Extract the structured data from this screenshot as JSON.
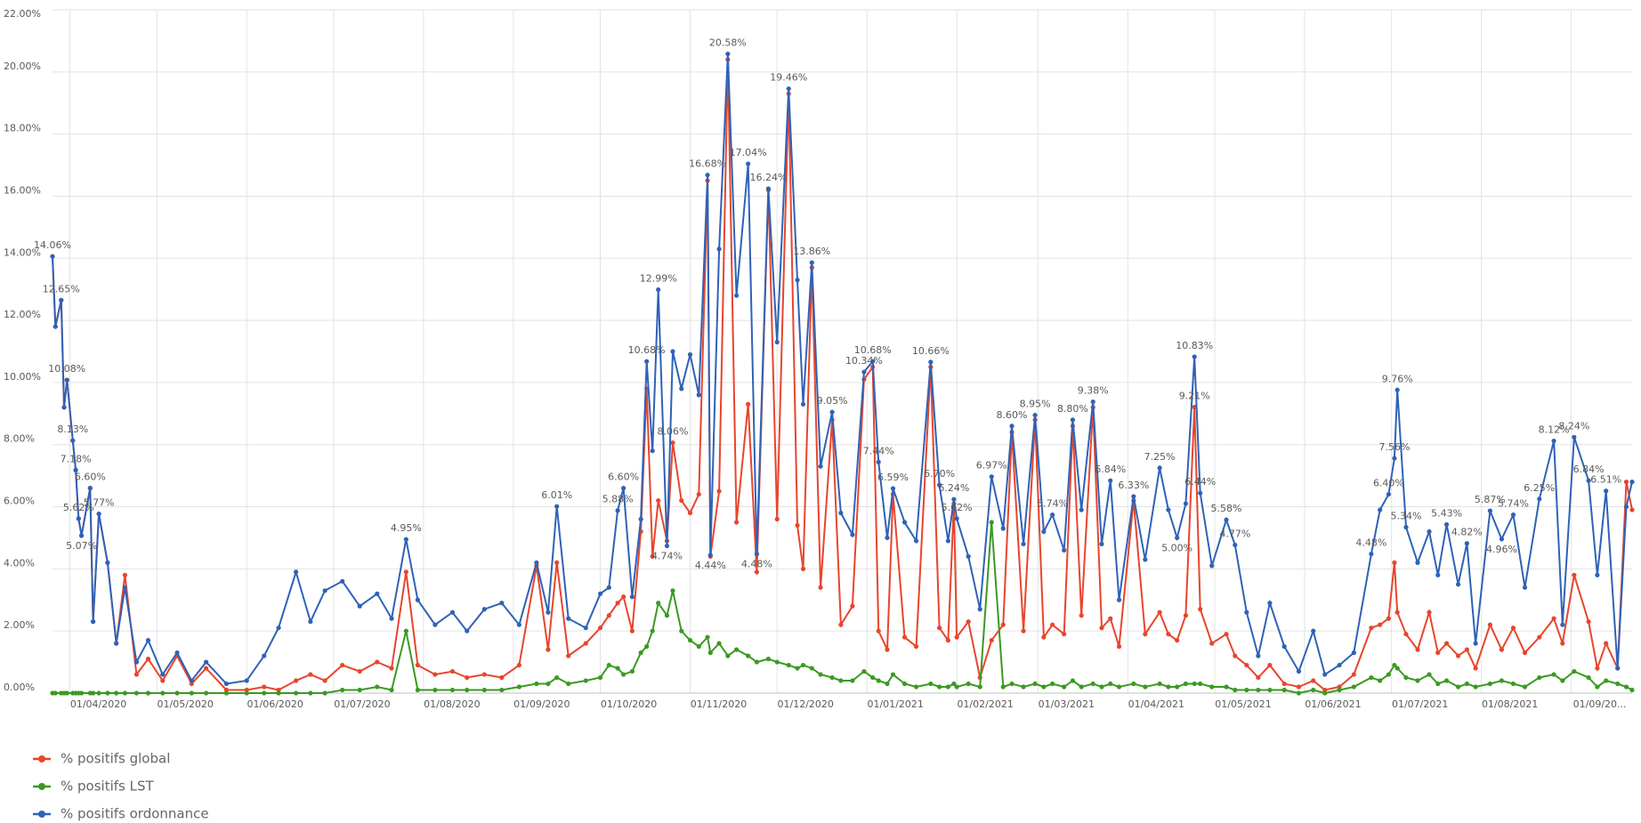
{
  "chart_data": {
    "type": "line",
    "x": [
      "26/03/2020",
      "27/03/2020",
      "29/03/2020",
      "30/03/2020",
      "31/03/2020",
      "02/04/2020",
      "03/04/2020",
      "04/04/2020",
      "05/04/2020",
      "08/04/2020",
      "09/04/2020",
      "11/04/2020",
      "14/04/2020",
      "17/04/2020",
      "20/04/2020",
      "24/04/2020",
      "28/04/2020",
      "03/05/2020",
      "08/05/2020",
      "13/05/2020",
      "18/05/2020",
      "25/05/2020",
      "01/06/2020",
      "07/06/2020",
      "12/06/2020",
      "18/06/2020",
      "23/06/2020",
      "28/06/2020",
      "04/07/2020",
      "10/07/2020",
      "16/07/2020",
      "21/07/2020",
      "26/07/2020",
      "30/07/2020",
      "05/08/2020",
      "11/08/2020",
      "16/08/2020",
      "22/08/2020",
      "28/08/2020",
      "03/09/2020",
      "09/09/2020",
      "13/09/2020",
      "16/09/2020",
      "20/09/2020",
      "26/09/2020",
      "01/10/2020",
      "04/10/2020",
      "07/10/2020",
      "09/10/2020",
      "12/10/2020",
      "15/10/2020",
      "17/10/2020",
      "19/10/2020",
      "21/10/2020",
      "24/10/2020",
      "26/10/2020",
      "29/10/2020",
      "01/11/2020",
      "04/11/2020",
      "07/11/2020",
      "08/11/2020",
      "11/11/2020",
      "14/11/2020",
      "17/11/2020",
      "21/11/2020",
      "24/11/2020",
      "28/11/2020",
      "01/12/2020",
      "05/12/2020",
      "08/12/2020",
      "10/12/2020",
      "13/12/2020",
      "16/12/2020",
      "20/12/2020",
      "23/12/2020",
      "27/12/2020",
      "31/12/2020",
      "03/01/2021",
      "05/01/2021",
      "08/01/2021",
      "10/01/2021",
      "14/01/2021",
      "18/01/2021",
      "23/01/2021",
      "26/01/2021",
      "29/01/2021",
      "31/01/2021",
      "01/02/2021",
      "05/02/2021",
      "09/02/2021",
      "13/02/2021",
      "17/02/2021",
      "20/02/2021",
      "24/02/2021",
      "28/02/2021",
      "03/03/2021",
      "06/03/2021",
      "10/03/2021",
      "13/03/2021",
      "16/03/2021",
      "20/03/2021",
      "23/03/2021",
      "26/03/2021",
      "29/03/2021",
      "03/04/2021",
      "07/04/2021",
      "12/04/2021",
      "15/04/2021",
      "18/04/2021",
      "21/04/2021",
      "24/04/2021",
      "26/04/2021",
      "30/04/2021",
      "05/05/2021",
      "08/05/2021",
      "12/05/2021",
      "16/05/2021",
      "20/05/2021",
      "25/05/2021",
      "30/05/2021",
      "04/06/2021",
      "08/06/2021",
      "13/06/2021",
      "18/06/2021",
      "24/06/2021",
      "27/06/2021",
      "30/06/2021",
      "02/07/2021",
      "03/07/2021",
      "06/07/2021",
      "10/07/2021",
      "14/07/2021",
      "17/07/2021",
      "20/07/2021",
      "24/07/2021",
      "27/07/2021",
      "30/07/2021",
      "04/08/2021",
      "08/08/2021",
      "12/08/2021",
      "16/08/2021",
      "21/08/2021",
      "26/08/2021",
      "29/08/2021",
      "02/09/2021",
      "07/09/2021",
      "10/09/2021",
      "13/09/2021",
      "17/09/2021",
      "20/09/2021",
      "22/09/2021"
    ],
    "series": [
      {
        "name": "% positifs global",
        "color": "#e8452c",
        "values": [
          14.06,
          11.8,
          12.65,
          9.2,
          10.08,
          8.13,
          7.18,
          5.62,
          5.07,
          6.6,
          2.3,
          5.77,
          4.2,
          1.6,
          3.8,
          0.6,
          1.1,
          0.4,
          1.2,
          0.3,
          0.8,
          0.1,
          0.1,
          0.2,
          0.1,
          0.4,
          0.6,
          0.4,
          0.9,
          0.7,
          1.0,
          0.8,
          3.9,
          0.9,
          0.6,
          0.7,
          0.5,
          0.6,
          0.5,
          0.9,
          4.1,
          1.4,
          4.2,
          1.2,
          1.6,
          2.1,
          2.5,
          2.9,
          3.1,
          2.0,
          5.2,
          9.8,
          4.4,
          6.2,
          4.9,
          8.06,
          6.2,
          5.8,
          6.4,
          16.5,
          4.4,
          6.5,
          20.4,
          5.5,
          9.3,
          3.9,
          16.2,
          5.6,
          19.3,
          5.4,
          4.0,
          13.7,
          3.4,
          8.8,
          2.2,
          2.8,
          10.1,
          10.5,
          2.0,
          1.4,
          6.4,
          1.8,
          1.5,
          10.5,
          2.1,
          1.7,
          6.1,
          1.8,
          2.3,
          0.5,
          1.7,
          2.2,
          8.4,
          2.0,
          8.8,
          1.8,
          2.2,
          1.9,
          8.6,
          2.5,
          9.2,
          2.1,
          2.4,
          1.5,
          6.2,
          1.9,
          2.6,
          1.9,
          1.7,
          2.5,
          9.21,
          2.7,
          1.6,
          1.9,
          1.2,
          0.9,
          0.5,
          0.9,
          0.3,
          0.2,
          0.4,
          0.1,
          0.2,
          0.6,
          2.1,
          2.2,
          2.4,
          4.2,
          2.6,
          1.9,
          1.4,
          2.6,
          1.3,
          1.6,
          1.2,
          1.4,
          0.8,
          2.2,
          1.4,
          2.1,
          1.3,
          1.8,
          2.4,
          1.6,
          3.8,
          2.3,
          0.8,
          1.6,
          0.8,
          6.8,
          5.9
        ],
        "value_labels": [
          null,
          null,
          null,
          null,
          null,
          null,
          null,
          null,
          null,
          null,
          null,
          null,
          null,
          null,
          null,
          null,
          null,
          null,
          null,
          null,
          null,
          null,
          null,
          null,
          null,
          null,
          null,
          null,
          null,
          null,
          null,
          null,
          null,
          null,
          null,
          null,
          null,
          null,
          null,
          null,
          null,
          null,
          null,
          null,
          null,
          null,
          null,
          null,
          null,
          null,
          null,
          null,
          null,
          null,
          null,
          "8.06%",
          null,
          null,
          null,
          null,
          null,
          null,
          null,
          null,
          null,
          null,
          null,
          null,
          null,
          null,
          null,
          null,
          null,
          null,
          null,
          null,
          null,
          null,
          null,
          null,
          null,
          null,
          null,
          null,
          null,
          null,
          null,
          null,
          null,
          null,
          null,
          null,
          null,
          null,
          null,
          null,
          null,
          null,
          null,
          null,
          null,
          null,
          null,
          null,
          null,
          null,
          null,
          null,
          null,
          null,
          "9.21%",
          null,
          null,
          null,
          null,
          null,
          null,
          null,
          null,
          null,
          null,
          null,
          null,
          null,
          null,
          null,
          null,
          null,
          null,
          null,
          null,
          null,
          null,
          null,
          null,
          null,
          null,
          null,
          null,
          null,
          null,
          null,
          null,
          null,
          null,
          null,
          null,
          null,
          null,
          null,
          null
        ]
      },
      {
        "name": "% positifs LST",
        "color": "#3a9a22",
        "values": [
          0,
          0,
          0,
          0,
          0,
          0,
          0,
          0,
          0,
          0,
          0,
          0,
          0,
          0,
          0,
          0,
          0,
          0,
          0,
          0,
          0,
          0,
          0,
          0,
          0,
          0,
          0,
          0,
          0.1,
          0.1,
          0.2,
          0.1,
          2.0,
          0.1,
          0.1,
          0.1,
          0.1,
          0.1,
          0.1,
          0.2,
          0.3,
          0.3,
          0.5,
          0.3,
          0.4,
          0.5,
          0.9,
          0.8,
          0.6,
          0.7,
          1.3,
          1.5,
          2.0,
          2.9,
          2.5,
          3.3,
          2.0,
          1.7,
          1.5,
          1.8,
          1.3,
          1.6,
          1.2,
          1.4,
          1.2,
          1.0,
          1.1,
          1.0,
          0.9,
          0.8,
          0.9,
          0.8,
          0.6,
          0.5,
          0.4,
          0.4,
          0.7,
          0.5,
          0.4,
          0.3,
          0.6,
          0.3,
          0.2,
          0.3,
          0.2,
          0.2,
          0.3,
          0.2,
          0.3,
          0.2,
          5.5,
          0.2,
          0.3,
          0.2,
          0.3,
          0.2,
          0.3,
          0.2,
          0.4,
          0.2,
          0.3,
          0.2,
          0.3,
          0.2,
          0.3,
          0.2,
          0.3,
          0.2,
          0.2,
          0.3,
          0.3,
          0.3,
          0.2,
          0.2,
          0.1,
          0.1,
          0.1,
          0.1,
          0.1,
          0.0,
          0.1,
          0.0,
          0.1,
          0.2,
          0.5,
          0.4,
          0.6,
          0.9,
          0.8,
          0.5,
          0.4,
          0.6,
          0.3,
          0.4,
          0.2,
          0.3,
          0.2,
          0.3,
          0.4,
          0.3,
          0.2,
          0.5,
          0.6,
          0.4,
          0.7,
          0.5,
          0.2,
          0.4,
          0.3,
          0.2,
          0.1
        ]
      },
      {
        "name": "% positifs ordonnance",
        "color": "#2f62b7",
        "values": [
          14.06,
          11.8,
          12.65,
          9.2,
          10.08,
          8.13,
          7.18,
          5.62,
          5.07,
          6.6,
          2.3,
          5.77,
          4.2,
          1.6,
          3.4,
          1.0,
          1.7,
          0.6,
          1.3,
          0.4,
          1.0,
          0.3,
          0.4,
          1.2,
          2.1,
          3.9,
          2.3,
          3.3,
          3.6,
          2.8,
          3.2,
          2.4,
          4.95,
          3.0,
          2.2,
          2.6,
          2.0,
          2.7,
          2.9,
          2.2,
          4.2,
          2.6,
          6.01,
          2.4,
          2.1,
          3.2,
          3.4,
          5.88,
          6.6,
          3.1,
          5.6,
          10.68,
          7.8,
          12.99,
          4.74,
          11.0,
          9.8,
          10.9,
          9.6,
          16.68,
          4.44,
          14.3,
          20.58,
          12.8,
          17.04,
          4.48,
          16.24,
          11.3,
          19.46,
          13.3,
          9.3,
          13.86,
          7.3,
          9.05,
          5.8,
          5.1,
          10.34,
          10.68,
          7.44,
          5.0,
          6.59,
          5.5,
          4.9,
          10.66,
          6.7,
          4.9,
          6.24,
          5.62,
          4.4,
          2.7,
          6.97,
          5.3,
          8.6,
          4.8,
          8.95,
          5.2,
          5.74,
          4.6,
          8.8,
          5.9,
          9.38,
          4.8,
          6.84,
          3.0,
          6.33,
          4.3,
          7.25,
          5.9,
          5.0,
          6.1,
          10.83,
          6.44,
          4.1,
          5.58,
          4.77,
          2.6,
          1.2,
          2.9,
          1.5,
          0.7,
          2.0,
          0.6,
          0.9,
          1.3,
          4.48,
          5.9,
          6.4,
          7.56,
          9.76,
          5.34,
          4.2,
          5.2,
          3.8,
          5.43,
          3.5,
          4.82,
          1.6,
          5.87,
          4.96,
          5.74,
          3.4,
          6.25,
          8.12,
          2.2,
          8.24,
          6.84,
          3.8,
          6.51,
          0.8,
          6.0,
          6.8
        ],
        "value_labels": [
          "14.06%",
          null,
          "12.65%",
          null,
          "10.08%",
          "8.13%",
          "7.18%",
          "5.62%",
          "5.07%",
          "6.60%",
          null,
          "5.77%",
          null,
          null,
          null,
          null,
          null,
          null,
          null,
          null,
          null,
          null,
          null,
          null,
          null,
          null,
          null,
          null,
          null,
          null,
          null,
          null,
          "4.95%",
          null,
          null,
          null,
          null,
          null,
          null,
          null,
          null,
          null,
          "6.01%",
          null,
          null,
          null,
          null,
          "5.88%",
          "6.60%",
          null,
          null,
          "10.68%",
          null,
          "12.99%",
          "4.74%",
          null,
          null,
          null,
          null,
          "16.68%",
          "4.44%",
          null,
          "20.58%",
          null,
          "17.04%",
          "4.48%",
          "16.24%",
          null,
          "19.46%",
          null,
          null,
          "13.86%",
          null,
          "9.05%",
          null,
          null,
          "10.34%",
          "10.68%",
          "7.44%",
          null,
          "6.59%",
          null,
          null,
          "10.66%",
          "6.70%",
          null,
          "6.24%",
          "5.62%",
          null,
          null,
          "6.97%",
          null,
          "8.60%",
          null,
          "8.95%",
          null,
          "5.74%",
          null,
          "8.80%",
          null,
          "9.38%",
          null,
          "6.84%",
          null,
          "6.33%",
          null,
          "7.25%",
          null,
          "5.00%",
          null,
          "10.83%",
          "6.44%",
          null,
          "5.58%",
          "4.77%",
          null,
          null,
          null,
          null,
          null,
          null,
          null,
          null,
          null,
          "4.48%",
          null,
          "6.40%",
          "7.56%",
          "9.76%",
          "5.34%",
          null,
          null,
          null,
          "5.43%",
          null,
          "4.82%",
          null,
          "5.87%",
          "4.96%",
          "5.74%",
          null,
          "6.25%",
          "8.12%",
          null,
          "8.24%",
          "6.84%",
          null,
          "6.51%",
          null,
          null,
          null
        ]
      }
    ],
    "xlim": [
      "26/03/2020",
      "22/09/2021"
    ],
    "xticks": [
      "01/04/2020",
      "01/05/2020",
      "01/06/2020",
      "01/07/2020",
      "01/08/2020",
      "01/09/2020",
      "01/10/2020",
      "01/11/2020",
      "01/12/2020",
      "01/01/2021",
      "01/02/2021",
      "01/03/2021",
      "01/04/2021",
      "01/05/2021",
      "01/06/2021",
      "01/07/2021",
      "01/08/2021",
      {
        "value": "01/09/2021",
        "label": "01/09/20..."
      }
    ],
    "ylim": [
      0,
      22
    ],
    "yticks": [
      {
        "value": 0,
        "label": "0.00%"
      },
      {
        "value": 2,
        "label": "2.00%"
      },
      {
        "value": 4,
        "label": "4.00%"
      },
      {
        "value": 6,
        "label": "6.00%"
      },
      {
        "value": 8,
        "label": "8.00%"
      },
      {
        "value": 10,
        "label": "10.00%"
      },
      {
        "value": 12,
        "label": "12.00%"
      },
      {
        "value": 14,
        "label": "14.00%"
      },
      {
        "value": 16,
        "label": "16.00%"
      },
      {
        "value": 18,
        "label": "18.00%"
      },
      {
        "value": 20,
        "label": "20.00%"
      },
      {
        "value": 22,
        "label": "22.00%"
      }
    ],
    "grid": true
  }
}
